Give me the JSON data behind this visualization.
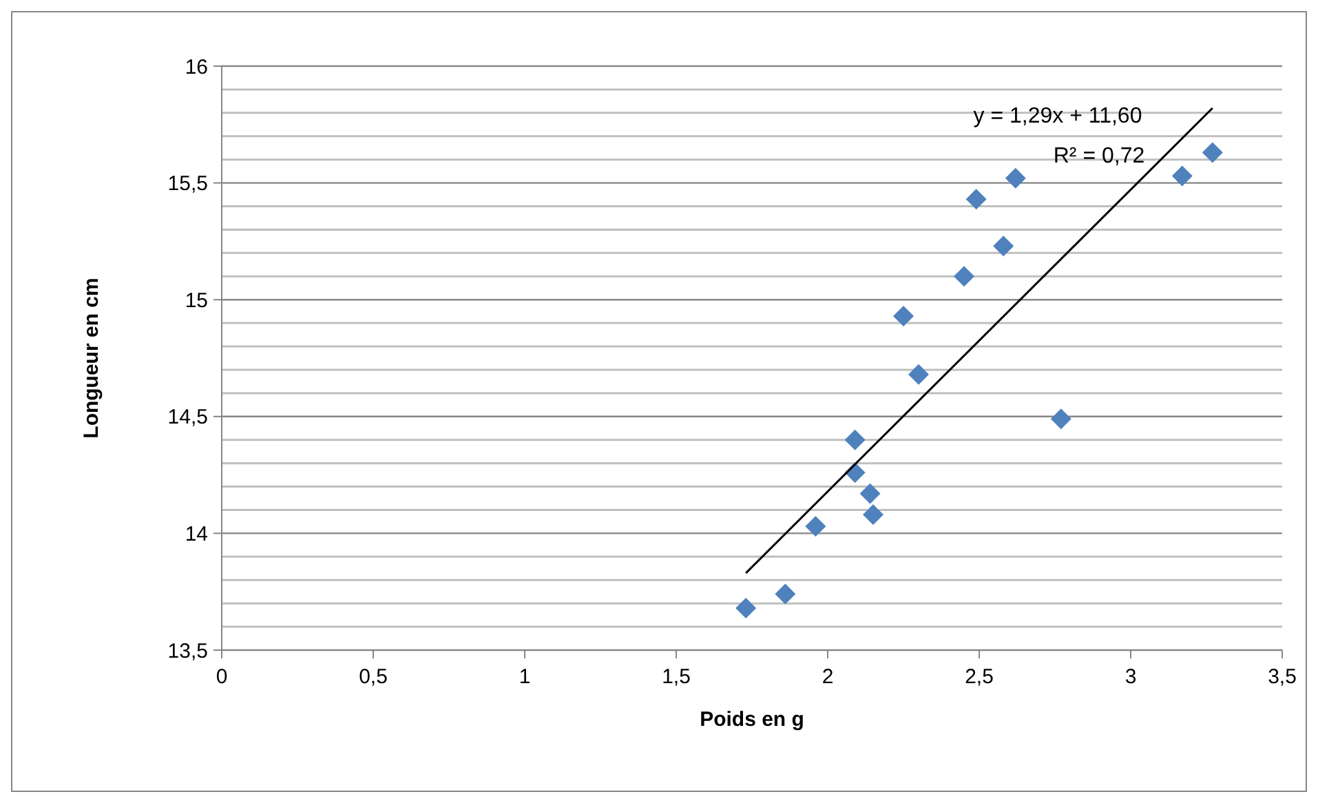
{
  "chart_data": {
    "type": "scatter",
    "xlabel": "Poids en g",
    "ylabel": "Longueur en cm",
    "xlim": [
      0,
      3.5
    ],
    "xticks": [
      0,
      {
        "value": 0.5,
        "label": "0,5"
      },
      1,
      {
        "value": 1.5,
        "label": "1,5"
      },
      2,
      {
        "value": 2.5,
        "label": "2,5"
      },
      3,
      {
        "value": 3.5,
        "label": "3,5"
      }
    ],
    "ylim": [
      13.5,
      16
    ],
    "yticks": [
      {
        "value": 13.5,
        "label": "13,5"
      },
      {
        "value": 13.6,
        "label": null
      },
      {
        "value": 13.7,
        "label": null
      },
      {
        "value": 13.8,
        "label": null
      },
      {
        "value": 13.9,
        "label": null
      },
      14,
      {
        "value": 14.1,
        "label": null
      },
      {
        "value": 14.2,
        "label": null
      },
      {
        "value": 14.3,
        "label": null
      },
      {
        "value": 14.4,
        "label": null
      },
      {
        "value": 14.5,
        "label": "14,5"
      },
      {
        "value": 14.6,
        "label": null
      },
      {
        "value": 14.7,
        "label": null
      },
      {
        "value": 14.8,
        "label": null
      },
      {
        "value": 14.9,
        "label": null
      },
      15,
      {
        "value": 15.1,
        "label": null
      },
      {
        "value": 15.2,
        "label": null
      },
      {
        "value": 15.3,
        "label": null
      },
      {
        "value": 15.4,
        "label": null
      },
      {
        "value": 15.5,
        "label": "15,5"
      },
      {
        "value": 15.6,
        "label": null
      },
      {
        "value": 15.7,
        "label": null
      },
      {
        "value": 15.8,
        "label": null
      },
      {
        "value": 15.9,
        "label": null
      },
      16
    ],
    "grid": "y",
    "annotations": [
      "y = 1,29x + 11,60",
      "R² = 0,72"
    ],
    "series": [
      {
        "color": "#4f81bd",
        "marker": "diamond",
        "x": [
          1.73,
          1.86,
          1.96,
          2.15,
          2.14,
          2.09,
          2.09,
          2.3,
          2.77,
          2.25,
          2.45,
          2.58,
          2.49,
          2.62,
          3.17,
          3.27
        ],
        "values": [
          13.68,
          13.74,
          14.03,
          14.08,
          14.17,
          14.26,
          14.4,
          14.68,
          14.49,
          14.93,
          15.1,
          15.23,
          15.43,
          15.52,
          15.53,
          15.63
        ]
      },
      {
        "type": "line",
        "color": "#000000",
        "marker": "none",
        "line_style": "solid",
        "x": [
          1.73,
          3.27
        ],
        "values": [
          13.83,
          15.82
        ]
      }
    ]
  }
}
